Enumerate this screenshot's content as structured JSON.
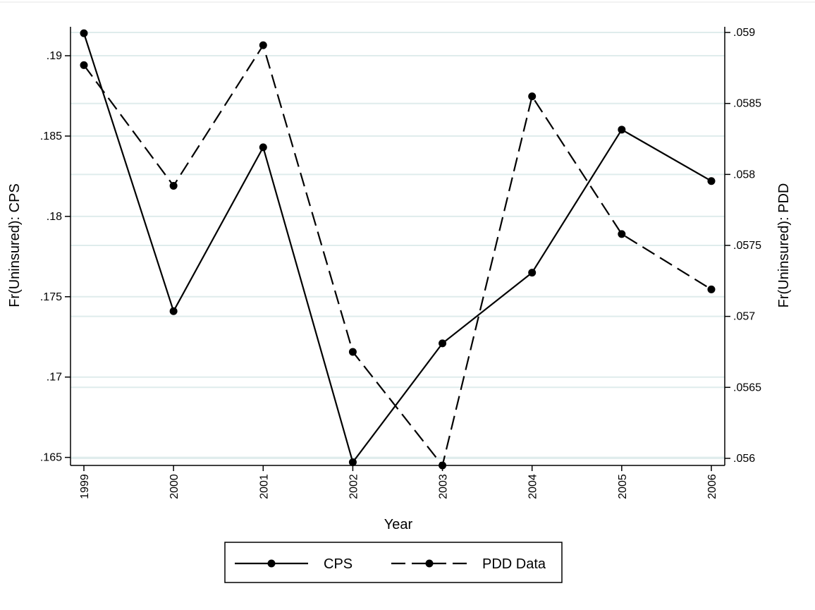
{
  "chart_data": {
    "type": "line",
    "x_label": "Year",
    "y_left_label": "Fr(Uninsured): CPS",
    "y_right_label": "Fr(Uninsured): PDD",
    "x": [
      1999,
      2000,
      2001,
      2002,
      2003,
      2004,
      2005,
      2006
    ],
    "x_tick_labels": [
      "1999",
      "2000",
      "2001",
      "2002",
      "2003",
      "2004",
      "2005",
      "2006"
    ],
    "y_left_range": [
      0.1645,
      0.1918
    ],
    "y_left_ticks": [
      0.165,
      0.17,
      0.175,
      0.18,
      0.185,
      0.19
    ],
    "y_left_tick_labels": [
      ".165",
      ".17",
      ".175",
      ".18",
      ".185",
      ".19"
    ],
    "y_right_range": [
      0.05595,
      0.05904
    ],
    "y_right_ticks": [
      0.056,
      0.0565,
      0.057,
      0.0575,
      0.058,
      0.0585,
      0.059
    ],
    "y_right_tick_labels": [
      ".056",
      ".0565",
      ".057",
      ".0575",
      ".058",
      ".0585",
      ".059"
    ],
    "grid": true,
    "legend_position": "bottom-center",
    "series": [
      {
        "name": "CPS",
        "axis": "left",
        "line_style": "solid",
        "values": [
          0.1914,
          0.1741,
          0.1843,
          0.1647,
          0.1721,
          0.1765,
          0.1854,
          0.1822
        ]
      },
      {
        "name": "PDD Data",
        "axis": "right",
        "line_style": "dashed",
        "values": [
          0.05877,
          0.05792,
          0.05891,
          0.05675,
          0.05595,
          0.05855,
          0.05758,
          0.05719
        ]
      }
    ],
    "colors": {
      "line": "#000000",
      "grid": "#dfecec",
      "background": "#ffffff"
    }
  }
}
